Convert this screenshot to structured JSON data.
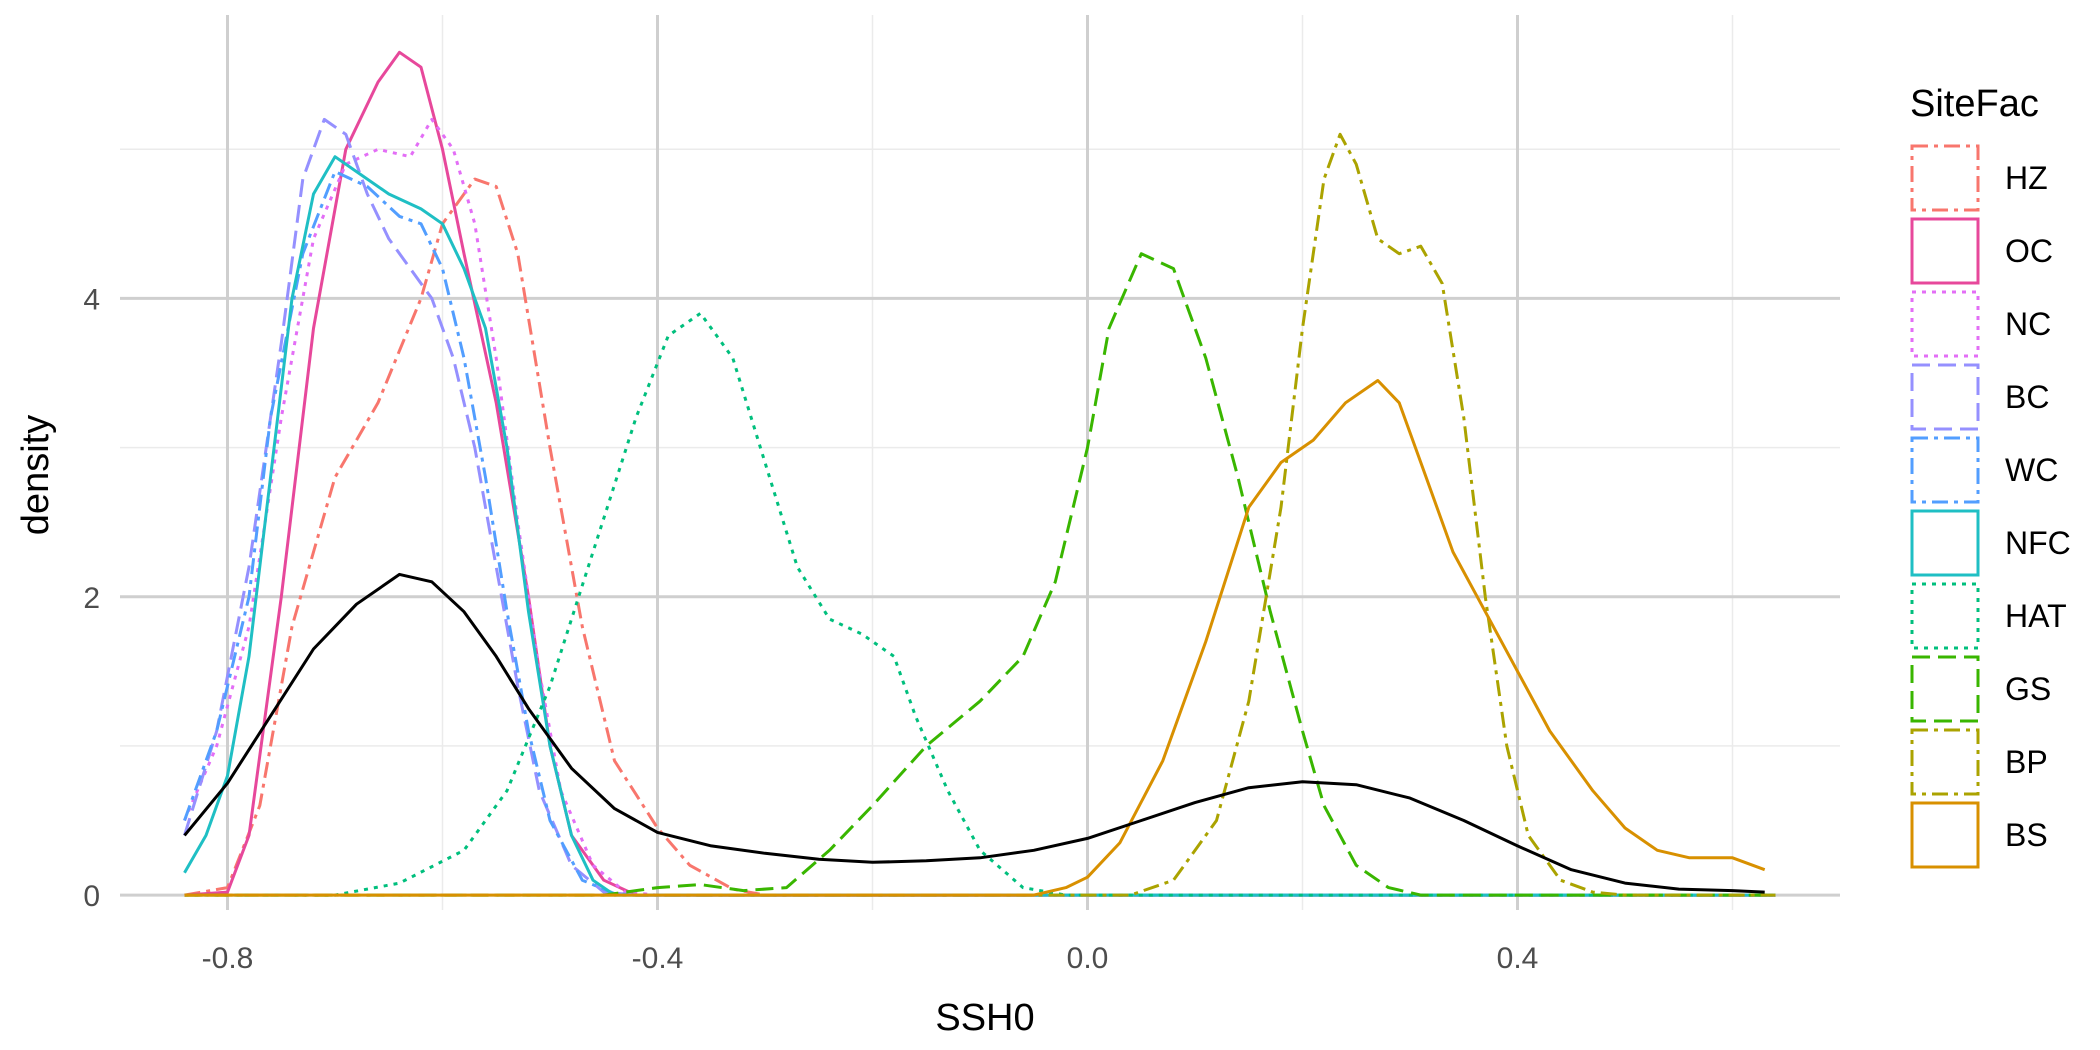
{
  "chart_data": {
    "type": "line",
    "xlabel": "SSH0",
    "ylabel": "density",
    "xlim": [
      -0.9,
      0.7
    ],
    "ylim": [
      -0.1,
      5.9
    ],
    "x_ticks": [
      -0.8,
      -0.4,
      0.0,
      0.4
    ],
    "x_tick_labels": [
      "-0.8",
      "-0.4",
      "0.0",
      "0.4"
    ],
    "y_ticks": [
      0,
      2,
      4
    ],
    "y_tick_labels": [
      "0",
      "2",
      "4"
    ],
    "grid": true,
    "legend_position": "right",
    "legend_title": "SiteFac",
    "series": [
      {
        "name": "HZ",
        "color": "#F8766D",
        "dash": "16,6,4,6",
        "points": [
          [
            -0.84,
            0
          ],
          [
            -0.8,
            0.05
          ],
          [
            -0.77,
            0.6
          ],
          [
            -0.74,
            1.8
          ],
          [
            -0.7,
            2.8
          ],
          [
            -0.66,
            3.3
          ],
          [
            -0.62,
            4.0
          ],
          [
            -0.6,
            4.5
          ],
          [
            -0.57,
            4.8
          ],
          [
            -0.55,
            4.75
          ],
          [
            -0.53,
            4.3
          ],
          [
            -0.5,
            3.0
          ],
          [
            -0.47,
            1.8
          ],
          [
            -0.44,
            0.9
          ],
          [
            -0.4,
            0.45
          ],
          [
            -0.37,
            0.2
          ],
          [
            -0.33,
            0.04
          ],
          [
            -0.3,
            0
          ],
          [
            0.64,
            0
          ]
        ]
      },
      {
        "name": "OC",
        "color": "#E7489B",
        "dash": "none",
        "points": [
          [
            -0.84,
            0
          ],
          [
            -0.8,
            0.02
          ],
          [
            -0.78,
            0.4
          ],
          [
            -0.75,
            2.0
          ],
          [
            -0.72,
            3.8
          ],
          [
            -0.69,
            5.0
          ],
          [
            -0.66,
            5.45
          ],
          [
            -0.64,
            5.65
          ],
          [
            -0.62,
            5.55
          ],
          [
            -0.6,
            5.0
          ],
          [
            -0.58,
            4.3
          ],
          [
            -0.55,
            3.3
          ],
          [
            -0.52,
            2.0
          ],
          [
            -0.5,
            1.0
          ],
          [
            -0.48,
            0.4
          ],
          [
            -0.45,
            0.1
          ],
          [
            -0.42,
            0
          ],
          [
            0.64,
            0
          ]
        ]
      },
      {
        "name": "NC",
        "color": "#E36EF6",
        "dash": "4,6",
        "points": [
          [
            -0.84,
            0.5
          ],
          [
            -0.81,
            1.0
          ],
          [
            -0.78,
            1.8
          ],
          [
            -0.75,
            3.2
          ],
          [
            -0.72,
            4.4
          ],
          [
            -0.69,
            4.9
          ],
          [
            -0.66,
            5.0
          ],
          [
            -0.63,
            4.95
          ],
          [
            -0.61,
            5.2
          ],
          [
            -0.59,
            5.0
          ],
          [
            -0.57,
            4.5
          ],
          [
            -0.55,
            3.6
          ],
          [
            -0.53,
            2.5
          ],
          [
            -0.51,
            1.5
          ],
          [
            -0.49,
            0.7
          ],
          [
            -0.46,
            0.2
          ],
          [
            -0.43,
            0.02
          ],
          [
            -0.4,
            0
          ],
          [
            0.64,
            0
          ]
        ]
      },
      {
        "name": "BC",
        "color": "#9590FF",
        "dash": "18,8",
        "points": [
          [
            -0.84,
            0.4
          ],
          [
            -0.81,
            1.1
          ],
          [
            -0.78,
            2.2
          ],
          [
            -0.75,
            3.7
          ],
          [
            -0.73,
            4.8
          ],
          [
            -0.71,
            5.2
          ],
          [
            -0.69,
            5.1
          ],
          [
            -0.67,
            4.7
          ],
          [
            -0.65,
            4.4
          ],
          [
            -0.63,
            4.2
          ],
          [
            -0.61,
            4.0
          ],
          [
            -0.59,
            3.6
          ],
          [
            -0.57,
            3.0
          ],
          [
            -0.55,
            2.2
          ],
          [
            -0.53,
            1.4
          ],
          [
            -0.51,
            0.7
          ],
          [
            -0.48,
            0.2
          ],
          [
            -0.45,
            0.02
          ],
          [
            -0.42,
            0
          ],
          [
            0.64,
            0
          ]
        ]
      },
      {
        "name": "WC",
        "color": "#529EFF",
        "dash": "16,6,4,6",
        "points": [
          [
            -0.84,
            0.5
          ],
          [
            -0.81,
            1.1
          ],
          [
            -0.78,
            2.0
          ],
          [
            -0.76,
            3.2
          ],
          [
            -0.73,
            4.3
          ],
          [
            -0.7,
            4.85
          ],
          [
            -0.67,
            4.75
          ],
          [
            -0.64,
            4.55
          ],
          [
            -0.62,
            4.5
          ],
          [
            -0.6,
            4.2
          ],
          [
            -0.58,
            3.6
          ],
          [
            -0.56,
            2.8
          ],
          [
            -0.54,
            1.9
          ],
          [
            -0.52,
            1.1
          ],
          [
            -0.5,
            0.5
          ],
          [
            -0.47,
            0.1
          ],
          [
            -0.44,
            0.01
          ],
          [
            -0.42,
            0
          ],
          [
            0.64,
            0
          ]
        ]
      },
      {
        "name": "NFC",
        "color": "#1FBFC4",
        "dash": "none",
        "points": [
          [
            -0.84,
            0.15
          ],
          [
            -0.82,
            0.4
          ],
          [
            -0.8,
            0.8
          ],
          [
            -0.78,
            1.6
          ],
          [
            -0.76,
            2.8
          ],
          [
            -0.74,
            4.0
          ],
          [
            -0.72,
            4.7
          ],
          [
            -0.7,
            4.95
          ],
          [
            -0.68,
            4.85
          ],
          [
            -0.65,
            4.7
          ],
          [
            -0.62,
            4.6
          ],
          [
            -0.6,
            4.5
          ],
          [
            -0.58,
            4.2
          ],
          [
            -0.56,
            3.8
          ],
          [
            -0.54,
            3.0
          ],
          [
            -0.52,
            1.9
          ],
          [
            -0.5,
            1.0
          ],
          [
            -0.48,
            0.4
          ],
          [
            -0.46,
            0.1
          ],
          [
            -0.44,
            0
          ],
          [
            0.64,
            0
          ]
        ]
      },
      {
        "name": "HAT",
        "color": "#00BF7D",
        "dash": "4,6",
        "points": [
          [
            -0.84,
            0
          ],
          [
            -0.7,
            0
          ],
          [
            -0.64,
            0.08
          ],
          [
            -0.58,
            0.3
          ],
          [
            -0.54,
            0.7
          ],
          [
            -0.5,
            1.4
          ],
          [
            -0.46,
            2.3
          ],
          [
            -0.42,
            3.2
          ],
          [
            -0.39,
            3.75
          ],
          [
            -0.36,
            3.9
          ],
          [
            -0.33,
            3.6
          ],
          [
            -0.3,
            2.9
          ],
          [
            -0.27,
            2.2
          ],
          [
            -0.24,
            1.85
          ],
          [
            -0.21,
            1.75
          ],
          [
            -0.18,
            1.6
          ],
          [
            -0.16,
            1.2
          ],
          [
            -0.13,
            0.7
          ],
          [
            -0.1,
            0.3
          ],
          [
            -0.06,
            0.05
          ],
          [
            -0.02,
            0
          ],
          [
            0.64,
            0
          ]
        ]
      },
      {
        "name": "GS",
        "color": "#39B600",
        "dash": "18,8",
        "points": [
          [
            -0.84,
            0
          ],
          [
            -0.45,
            0
          ],
          [
            -0.4,
            0.05
          ],
          [
            -0.36,
            0.07
          ],
          [
            -0.32,
            0.03
          ],
          [
            -0.28,
            0.05
          ],
          [
            -0.24,
            0.3
          ],
          [
            -0.2,
            0.6
          ],
          [
            -0.15,
            1.0
          ],
          [
            -0.1,
            1.3
          ],
          [
            -0.06,
            1.6
          ],
          [
            -0.03,
            2.1
          ],
          [
            0.0,
            3.0
          ],
          [
            0.02,
            3.8
          ],
          [
            0.05,
            4.3
          ],
          [
            0.08,
            4.2
          ],
          [
            0.11,
            3.6
          ],
          [
            0.14,
            2.8
          ],
          [
            0.17,
            1.9
          ],
          [
            0.2,
            1.1
          ],
          [
            0.22,
            0.6
          ],
          [
            0.25,
            0.2
          ],
          [
            0.28,
            0.05
          ],
          [
            0.31,
            0
          ],
          [
            0.64,
            0
          ]
        ]
      },
      {
        "name": "BP",
        "color": "#ABA300",
        "dash": "16,6,4,6",
        "points": [
          [
            -0.84,
            0
          ],
          [
            0.04,
            0
          ],
          [
            0.08,
            0.1
          ],
          [
            0.12,
            0.5
          ],
          [
            0.15,
            1.3
          ],
          [
            0.18,
            2.6
          ],
          [
            0.2,
            3.8
          ],
          [
            0.22,
            4.8
          ],
          [
            0.235,
            5.1
          ],
          [
            0.25,
            4.9
          ],
          [
            0.27,
            4.4
          ],
          [
            0.29,
            4.3
          ],
          [
            0.31,
            4.35
          ],
          [
            0.33,
            4.1
          ],
          [
            0.35,
            3.2
          ],
          [
            0.37,
            2.0
          ],
          [
            0.39,
            1.0
          ],
          [
            0.41,
            0.4
          ],
          [
            0.44,
            0.1
          ],
          [
            0.47,
            0.02
          ],
          [
            0.5,
            0
          ],
          [
            0.64,
            0
          ]
        ]
      },
      {
        "name": "BS",
        "color": "#D89000",
        "dash": "none",
        "points": [
          [
            -0.84,
            0
          ],
          [
            -0.05,
            0
          ],
          [
            -0.02,
            0.05
          ],
          [
            0.0,
            0.12
          ],
          [
            0.03,
            0.35
          ],
          [
            0.07,
            0.9
          ],
          [
            0.11,
            1.7
          ],
          [
            0.15,
            2.6
          ],
          [
            0.18,
            2.9
          ],
          [
            0.21,
            3.05
          ],
          [
            0.24,
            3.3
          ],
          [
            0.27,
            3.45
          ],
          [
            0.29,
            3.3
          ],
          [
            0.31,
            2.9
          ],
          [
            0.34,
            2.3
          ],
          [
            0.37,
            1.9
          ],
          [
            0.4,
            1.5
          ],
          [
            0.43,
            1.1
          ],
          [
            0.47,
            0.7
          ],
          [
            0.5,
            0.45
          ],
          [
            0.53,
            0.3
          ],
          [
            0.56,
            0.25
          ],
          [
            0.6,
            0.25
          ],
          [
            0.63,
            0.17
          ]
        ]
      },
      {
        "name": "",
        "color": "#000000",
        "dash": "none",
        "points": [
          [
            -0.84,
            0.4
          ],
          [
            -0.8,
            0.75
          ],
          [
            -0.76,
            1.2
          ],
          [
            -0.72,
            1.65
          ],
          [
            -0.68,
            1.95
          ],
          [
            -0.64,
            2.15
          ],
          [
            -0.61,
            2.1
          ],
          [
            -0.58,
            1.9
          ],
          [
            -0.55,
            1.6
          ],
          [
            -0.52,
            1.25
          ],
          [
            -0.48,
            0.85
          ],
          [
            -0.44,
            0.58
          ],
          [
            -0.4,
            0.42
          ],
          [
            -0.35,
            0.33
          ],
          [
            -0.3,
            0.28
          ],
          [
            -0.25,
            0.24
          ],
          [
            -0.2,
            0.22
          ],
          [
            -0.15,
            0.23
          ],
          [
            -0.1,
            0.25
          ],
          [
            -0.05,
            0.3
          ],
          [
            0.0,
            0.38
          ],
          [
            0.05,
            0.5
          ],
          [
            0.1,
            0.62
          ],
          [
            0.15,
            0.72
          ],
          [
            0.2,
            0.76
          ],
          [
            0.25,
            0.74
          ],
          [
            0.3,
            0.65
          ],
          [
            0.35,
            0.5
          ],
          [
            0.4,
            0.33
          ],
          [
            0.45,
            0.17
          ],
          [
            0.5,
            0.08
          ],
          [
            0.55,
            0.04
          ],
          [
            0.6,
            0.03
          ],
          [
            0.63,
            0.02
          ]
        ]
      }
    ]
  }
}
